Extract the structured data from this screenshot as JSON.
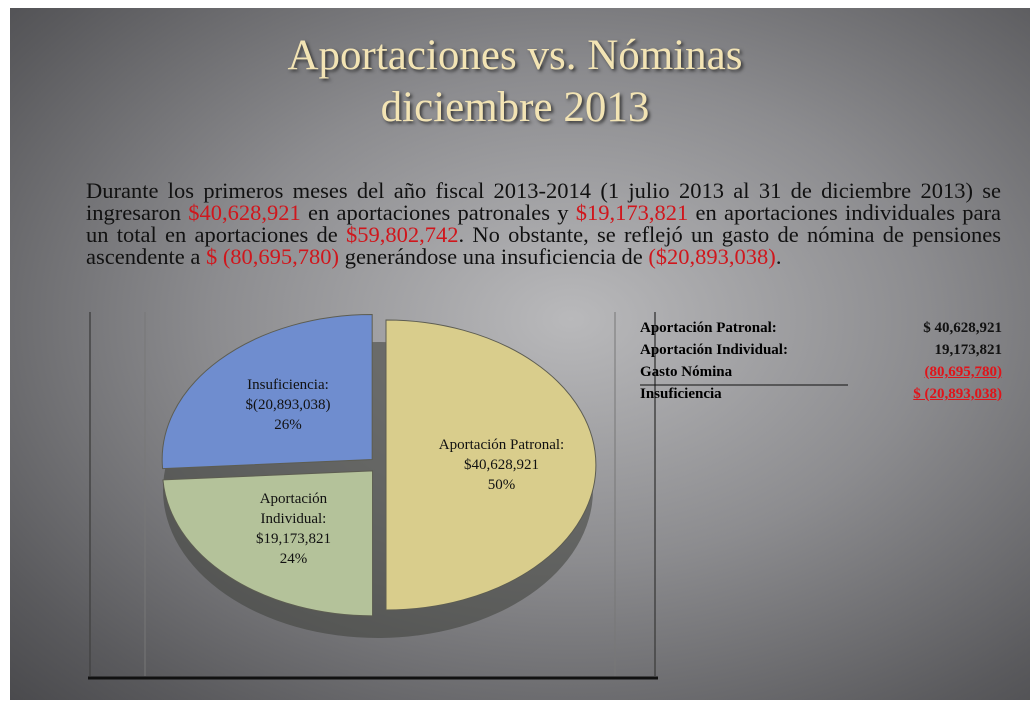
{
  "title": [
    "Aportaciones vs. Nóminas",
    "diciembre 2013"
  ],
  "paragraph": [
    {
      "text": "Durante los primeros meses del año fiscal 2013-2014 (1 julio 2013 al 31 de diciembre 2013) se ingresaron ",
      "color": "#111111"
    },
    {
      "text": "$40,628,921",
      "color": "#d0161c"
    },
    {
      "text": " en aportaciones patronales y ",
      "color": "#111111"
    },
    {
      "text": "$19,173,821",
      "color": "#d0161c"
    },
    {
      "text": " en aportaciones individuales para un total en aportaciones de ",
      "color": "#111111"
    },
    {
      "text": "$59,802,742",
      "color": "#d0161c"
    },
    {
      "text": ". No obstante, se reflejó un gasto de nómina de pensiones ascendente a ",
      "color": "#111111"
    },
    {
      "text": "$ (80,695,780)",
      "color": "#d0161c"
    },
    {
      "text": " generándose una insuficiencia de ",
      "color": "#111111"
    },
    {
      "text": "($20,893,038)",
      "color": "#d0161c"
    },
    {
      "text": ".",
      "color": "#111111"
    }
  ],
  "chart_data": {
    "type": "pie",
    "categories": [
      "Aportación Patronal:",
      "Aportación Individual:",
      "Insuficiencia:"
    ],
    "amount_labels": [
      "$40,628,921",
      "$19,173,821",
      "$(20,893,038)"
    ],
    "values": [
      50,
      24,
      26
    ],
    "value_labels": [
      "50%",
      "24%",
      "26%"
    ],
    "colors": [
      "#d9cd8c",
      "#b4c29a",
      "#6f8dcf"
    ]
  },
  "table": {
    "rows": [
      {
        "label": "Aportación Patronal:",
        "value": "$ 40,628,921",
        "color": "#111111"
      },
      {
        "label": "Aportación Individual:",
        "value": "19,173,821",
        "color": "#111111"
      },
      {
        "label": "Gasto Nómina",
        "value": "(80,695,780)",
        "color": "#e0141a"
      },
      {
        "label": "Insuficiencia",
        "value": "$ (20,893,038)",
        "color": "#e0141a"
      }
    ]
  }
}
